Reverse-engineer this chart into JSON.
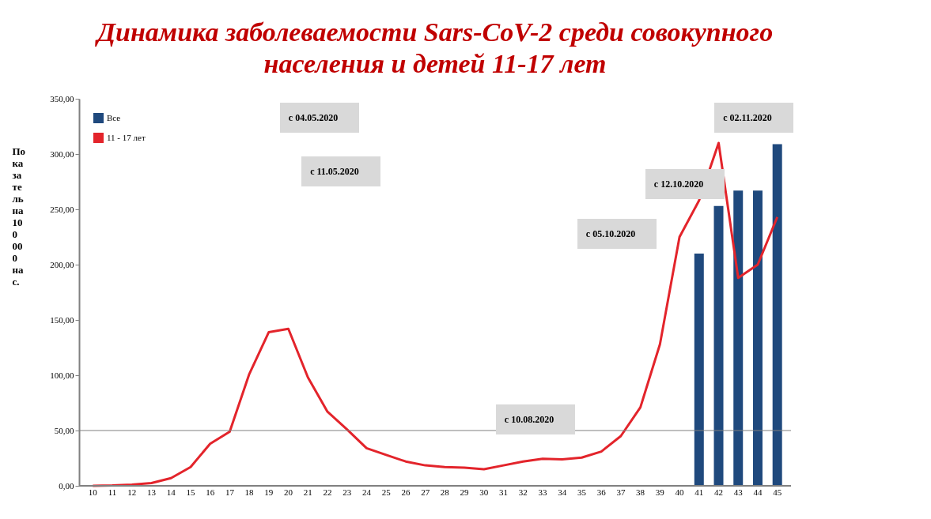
{
  "chart_data": {
    "type": "bar",
    "title": "Динамика заболеваемости Sars-CoV-2 среди совокупного населения и детей 11-17 лет",
    "ylabel": "Показатель на 100 000 нас.",
    "categories": [
      "10",
      "11",
      "12",
      "13",
      "14",
      "15",
      "16",
      "17",
      "18",
      "19",
      "20",
      "21",
      "22",
      "23",
      "24",
      "25",
      "26",
      "27",
      "28",
      "29",
      "30",
      "31",
      "32",
      "33",
      "34",
      "35",
      "36",
      "37",
      "38",
      "39",
      "40",
      "41",
      "42",
      "43",
      "44",
      "45"
    ],
    "series": [
      {
        "name": "Все",
        "color": "#1f497d",
        "values": [
          null,
          null,
          null,
          null,
          null,
          null,
          null,
          null,
          null,
          null,
          null,
          null,
          null,
          null,
          null,
          null,
          null,
          null,
          null,
          null,
          null,
          null,
          null,
          null,
          null,
          null,
          null,
          null,
          null,
          null,
          null,
          210,
          253,
          267,
          267,
          309
        ]
      },
      {
        "name": "11 - 17 лет",
        "type": "line",
        "color": "#e3242b",
        "values": [
          0,
          0.3,
          1,
          2.5,
          7,
          17,
          38,
          49,
          101,
          139,
          142,
          98,
          67,
          51,
          34,
          28,
          22,
          18.5,
          17,
          16.5,
          15,
          18.5,
          22,
          24.5,
          24,
          25.5,
          31,
          45,
          71,
          128,
          225,
          258,
          310,
          188,
          200,
          243
        ]
      }
    ],
    "ylim": [
      0,
      350
    ],
    "yticks": [
      {
        "value": 0,
        "label": "0,00"
      },
      {
        "value": 50,
        "label": "50,00"
      },
      {
        "value": 100,
        "label": "100,00"
      },
      {
        "value": 150,
        "label": "150,00"
      },
      {
        "value": 200,
        "label": "200,00"
      },
      {
        "value": 250,
        "label": "250,00"
      },
      {
        "value": 300,
        "label": "300,00"
      },
      {
        "value": 350,
        "label": "350,00"
      }
    ],
    "ref_lines": [
      {
        "axis": "y",
        "value": 50,
        "color": "#808080"
      }
    ],
    "annotations": [
      "с 04.05.2020",
      "с 11.05.2020",
      "с 10.08.2020",
      "с 05.10.2020",
      "с 12.10.2020",
      "с 02.11.2020"
    ],
    "legend": "top left",
    "grid": false
  }
}
